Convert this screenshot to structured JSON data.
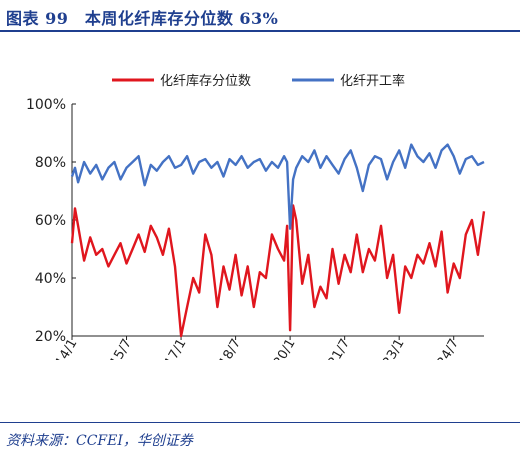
{
  "header": {
    "title": "图表 99　本周化纤库存分位数 63%"
  },
  "footer": {
    "source": "资料来源：CCFEI，华创证券"
  },
  "colors": {
    "inventory": "#e0161e",
    "operating": "#4472c4",
    "brand": "#1f3f8f"
  },
  "chart_data": {
    "type": "line",
    "title": "",
    "xlabel": "",
    "ylabel": "",
    "ylim": [
      20,
      100
    ],
    "yticks": [
      "100%",
      "80%",
      "60%",
      "40%",
      "20%"
    ],
    "xlim": [
      "2014/1",
      "2025/5"
    ],
    "xticks": [
      "2014/1",
      "2015/7",
      "2017/1",
      "2018/7",
      "2020/1",
      "2021/7",
      "2023/1",
      "2024/7"
    ],
    "legend_position": "top",
    "grid": false,
    "series": [
      {
        "name": "化纤库存分位数",
        "color": "#e0161e",
        "x": [
          "2014/1",
          "2014/2",
          "2014/3",
          "2014/5",
          "2014/7",
          "2014/9",
          "2014/11",
          "2015/1",
          "2015/3",
          "2015/5",
          "2015/7",
          "2015/9",
          "2015/11",
          "2016/1",
          "2016/3",
          "2016/5",
          "2016/7",
          "2016/9",
          "2016/11",
          "2017/1",
          "2017/3",
          "2017/5",
          "2017/7",
          "2017/9",
          "2017/11",
          "2018/1",
          "2018/3",
          "2018/5",
          "2018/7",
          "2018/9",
          "2018/11",
          "2019/1",
          "2019/3",
          "2019/5",
          "2019/7",
          "2019/9",
          "2019/11",
          "2019/12",
          "2020/1",
          "2020/2",
          "2020/3",
          "2020/5",
          "2020/7",
          "2020/9",
          "2020/11",
          "2021/1",
          "2021/3",
          "2021/5",
          "2021/7",
          "2021/9",
          "2021/11",
          "2022/1",
          "2022/3",
          "2022/5",
          "2022/7",
          "2022/9",
          "2022/11",
          "2023/1",
          "2023/3",
          "2023/5",
          "2023/7",
          "2023/9",
          "2023/11",
          "2024/1",
          "2024/3",
          "2024/5",
          "2024/7",
          "2024/9",
          "2024/11",
          "2025/1",
          "2025/3",
          "2025/5"
        ],
        "values": [
          52,
          64,
          58,
          46,
          54,
          48,
          50,
          44,
          48,
          52,
          45,
          50,
          55,
          49,
          58,
          54,
          48,
          57,
          44,
          20,
          30,
          40,
          35,
          55,
          48,
          30,
          44,
          36,
          48,
          34,
          44,
          30,
          42,
          40,
          55,
          50,
          46,
          58,
          22,
          65,
          60,
          38,
          48,
          30,
          37,
          33,
          50,
          38,
          48,
          42,
          55,
          42,
          50,
          46,
          58,
          40,
          48,
          28,
          44,
          40,
          48,
          45,
          52,
          44,
          56,
          35,
          45,
          40,
          55,
          60,
          48,
          63
        ]
      },
      {
        "name": "化纤开工率",
        "color": "#4472c4",
        "x": [
          "2014/1",
          "2014/2",
          "2014/3",
          "2014/5",
          "2014/7",
          "2014/9",
          "2014/11",
          "2015/1",
          "2015/3",
          "2015/5",
          "2015/7",
          "2015/9",
          "2015/11",
          "2016/1",
          "2016/3",
          "2016/5",
          "2016/7",
          "2016/9",
          "2016/11",
          "2017/1",
          "2017/3",
          "2017/5",
          "2017/7",
          "2017/9",
          "2017/11",
          "2018/1",
          "2018/3",
          "2018/5",
          "2018/7",
          "2018/9",
          "2018/11",
          "2019/1",
          "2019/3",
          "2019/5",
          "2019/7",
          "2019/9",
          "2019/11",
          "2019/12",
          "2020/1",
          "2020/2",
          "2020/3",
          "2020/5",
          "2020/7",
          "2020/9",
          "2020/11",
          "2021/1",
          "2021/3",
          "2021/5",
          "2021/7",
          "2021/9",
          "2021/11",
          "2022/1",
          "2022/3",
          "2022/5",
          "2022/7",
          "2022/9",
          "2022/11",
          "2023/1",
          "2023/3",
          "2023/5",
          "2023/7",
          "2023/9",
          "2023/11",
          "2024/1",
          "2024/3",
          "2024/5",
          "2024/7",
          "2024/9",
          "2024/11",
          "2025/1",
          "2025/3",
          "2025/5"
        ],
        "values": [
          75,
          78,
          73,
          80,
          76,
          79,
          74,
          78,
          80,
          74,
          78,
          80,
          82,
          72,
          79,
          77,
          80,
          82,
          78,
          79,
          82,
          76,
          80,
          81,
          78,
          80,
          75,
          81,
          79,
          82,
          78,
          80,
          81,
          77,
          80,
          78,
          82,
          80,
          57,
          74,
          78,
          82,
          80,
          84,
          78,
          82,
          79,
          76,
          81,
          84,
          78,
          70,
          79,
          82,
          81,
          74,
          80,
          84,
          78,
          86,
          82,
          80,
          83,
          78,
          84,
          86,
          82,
          76,
          81,
          82,
          79,
          80
        ]
      }
    ]
  }
}
